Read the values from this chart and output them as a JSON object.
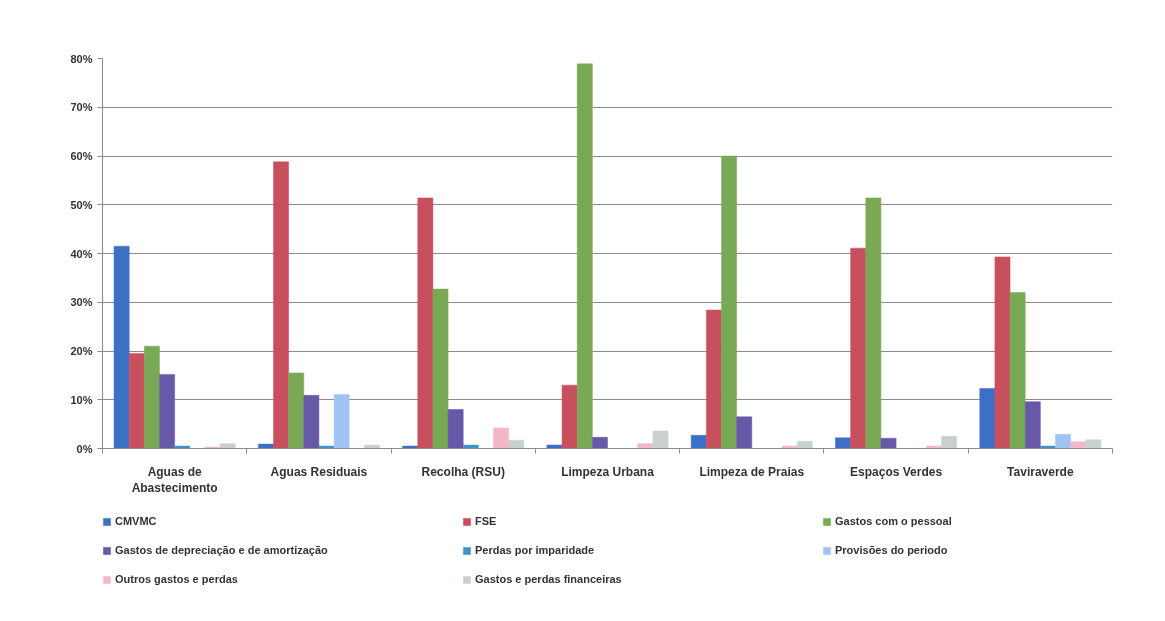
{
  "chart_data": {
    "type": "bar",
    "categories": [
      "Aguas de Abastecimento",
      "Aguas Residuais",
      "Recolha (RSU)",
      "Limpeza Urbana",
      "Limpeza de Praias",
      "Espaços Verdes",
      "Taviraverde"
    ],
    "series": [
      {
        "name": "CMVMC",
        "color": "#3c6fc6",
        "values": [
          41.5,
          0.9,
          0.5,
          0.7,
          2.7,
          2.2,
          12.3
        ]
      },
      {
        "name": "FSE",
        "color": "#c8505e",
        "values": [
          19.5,
          58.8,
          51.4,
          13.0,
          28.4,
          41.1,
          39.3
        ]
      },
      {
        "name": "Gastos com o pessoal",
        "color": "#7aa955",
        "values": [
          21.0,
          15.5,
          32.7,
          78.9,
          60.0,
          51.4,
          32.0
        ]
      },
      {
        "name": "Gastos de depreciação e de amortização",
        "color": "#6759a8",
        "values": [
          15.2,
          10.9,
          8.0,
          2.3,
          6.5,
          2.1,
          9.6
        ]
      },
      {
        "name": "Perdas por imparidade",
        "color": "#3f92d0",
        "values": [
          0.5,
          0.5,
          0.7,
          null,
          null,
          null,
          0.5
        ]
      },
      {
        "name": "Provisões do periodo",
        "color": "#a0c4f2",
        "values": [
          null,
          11.1,
          null,
          null,
          null,
          null,
          2.9
        ]
      },
      {
        "name": "Outros gastos e perdas",
        "color": "#f2b8c8",
        "values": [
          0.3,
          null,
          4.2,
          1.0,
          0.5,
          0.5,
          1.4
        ]
      },
      {
        "name": "Gastos e perdas financeiras",
        "color": "#c9d1ce",
        "values": [
          1.0,
          0.7,
          1.7,
          3.6,
          1.5,
          2.5,
          1.8
        ]
      }
    ],
    "ylim": [
      0,
      80
    ],
    "yticks": [
      {
        "value": 0,
        "label": "0%"
      },
      {
        "value": 10,
        "label": "10%"
      },
      {
        "value": 20,
        "label": "20%"
      },
      {
        "value": 30,
        "label": "30%"
      },
      {
        "value": 40,
        "label": "40%"
      },
      {
        "value": 50,
        "label": "50%"
      },
      {
        "value": 60,
        "label": "60%"
      },
      {
        "value": 70,
        "label": "70%"
      },
      {
        "value": 80,
        "label": "80%"
      }
    ],
    "grid": "y",
    "legend": "bottom"
  }
}
